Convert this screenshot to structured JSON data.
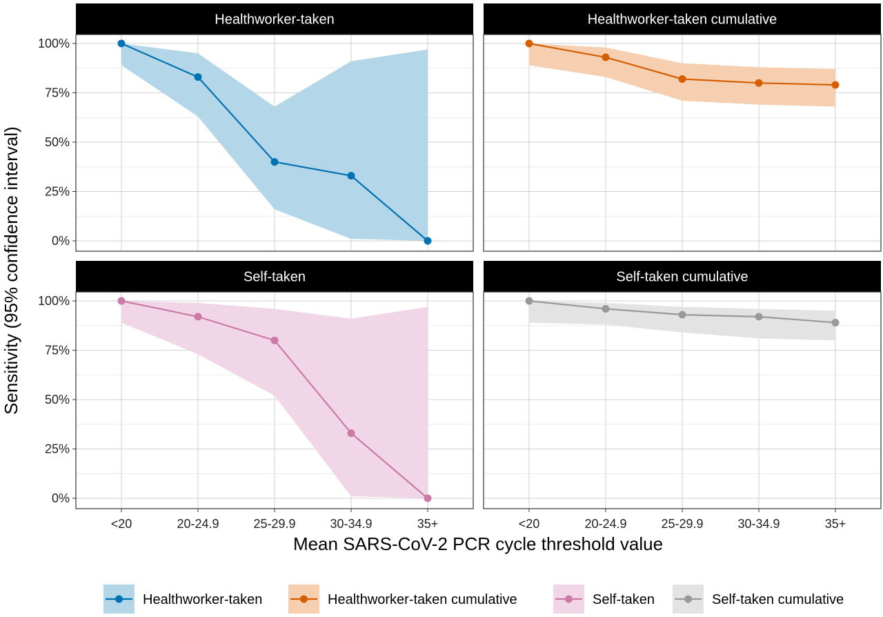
{
  "chart_data": {
    "type": "line",
    "xlabel": "Mean SARS-CoV-2 PCR cycle threshold value",
    "ylabel": "Sensitivity (95% confidence interval)",
    "categories": [
      "<20",
      "20-24.9",
      "25-29.9",
      "30-34.9",
      "35+"
    ],
    "y_ticks": [
      "0%",
      "25%",
      "50%",
      "75%",
      "100%"
    ],
    "ylim": [
      0,
      1
    ],
    "grid": true,
    "legend_position": "bottom",
    "panels": [
      {
        "title": "Healthworker-taken",
        "series": "Healthworker-taken",
        "color": "#0072B2",
        "fill": "#B3D6E8",
        "values": [
          1.0,
          0.83,
          0.4,
          0.33,
          0.0
        ],
        "lower": [
          0.89,
          0.63,
          0.16,
          0.01,
          0.0
        ],
        "upper": [
          1.0,
          0.95,
          0.68,
          0.91,
          0.97
        ]
      },
      {
        "title": "Healthworker-taken cumulative",
        "series": "Healthworker-taken cumulative",
        "color": "#D55E00",
        "fill": "#F6CFB0",
        "values": [
          1.0,
          0.93,
          0.82,
          0.8,
          0.79
        ],
        "lower": [
          0.89,
          0.83,
          0.71,
          0.69,
          0.68
        ],
        "upper": [
          1.0,
          0.98,
          0.9,
          0.88,
          0.87
        ]
      },
      {
        "title": "Self-taken",
        "series": "Self-taken",
        "color": "#CC79A7",
        "fill": "#F0D6E6",
        "values": [
          1.0,
          0.92,
          0.8,
          0.33,
          0.0
        ],
        "lower": [
          0.89,
          0.73,
          0.52,
          0.01,
          0.0
        ],
        "upper": [
          1.0,
          0.99,
          0.96,
          0.91,
          0.97
        ]
      },
      {
        "title": "Self-taken cumulative",
        "series": "Self-taken cumulative",
        "color": "#999999",
        "fill": "#E3E3E3",
        "values": [
          1.0,
          0.96,
          0.93,
          0.92,
          0.89
        ],
        "lower": [
          0.89,
          0.88,
          0.84,
          0.81,
          0.8
        ],
        "upper": [
          1.0,
          0.99,
          0.97,
          0.96,
          0.95
        ]
      }
    ],
    "legend": [
      {
        "name": "Healthworker-taken",
        "color": "#0072B2",
        "fill": "#B3D6E8"
      },
      {
        "name": "Healthworker-taken cumulative",
        "color": "#D55E00",
        "fill": "#F6CFB0"
      },
      {
        "name": "Self-taken",
        "color": "#CC79A7",
        "fill": "#F0D6E6"
      },
      {
        "name": "Self-taken cumulative",
        "color": "#999999",
        "fill": "#E3E3E3"
      }
    ]
  }
}
